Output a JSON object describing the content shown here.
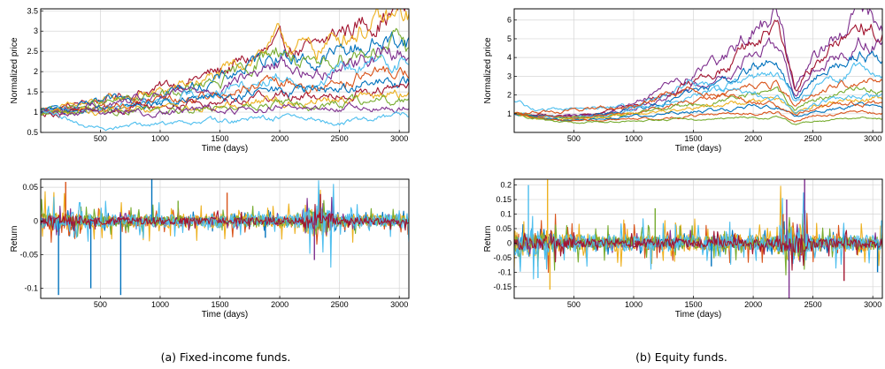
{
  "captions": {
    "left": "(a)  Fixed-income funds.",
    "right": "(b)  Equity funds."
  },
  "palette": [
    "#0072bd",
    "#d95319",
    "#edb120",
    "#7e2f8e",
    "#77ac30",
    "#4dbeee",
    "#a2142f"
  ],
  "chart_data": [
    {
      "id": "fi-price",
      "type": "line",
      "xlabel": "Time (days)",
      "ylabel": "Normalized price",
      "xlim": [
        1,
        3080
      ],
      "ylim": [
        0.5,
        3.55
      ],
      "xticks": [
        500,
        1000,
        1500,
        2000,
        2500,
        3000
      ],
      "yticks": [
        0.5,
        1,
        1.5,
        2,
        2.5,
        3,
        3.5
      ],
      "ytick_labels": [
        "0.5",
        "1",
        "1.5",
        "2",
        "2.5",
        "3",
        "3.5"
      ],
      "grid": true,
      "x": [
        1,
        500,
        1000,
        1500,
        2000,
        2300,
        2500,
        3000,
        3080
      ],
      "series": [
        {
          "values": [
            1.0,
            1.3,
            1.6,
            2.0,
            2.6,
            2.5,
            3.0,
            3.5,
            3.55
          ],
          "color": "#a2142f"
        },
        {
          "values": [
            1.0,
            1.25,
            1.5,
            1.9,
            2.8,
            2.5,
            2.9,
            3.3,
            3.35
          ],
          "color": "#edb120"
        },
        {
          "values": [
            1.0,
            1.2,
            1.45,
            1.8,
            2.5,
            2.2,
            2.5,
            2.8,
            2.8
          ],
          "color": "#0072bd"
        },
        {
          "values": [
            1.0,
            1.2,
            1.4,
            1.7,
            2.6,
            2.0,
            2.4,
            2.7,
            2.6
          ],
          "color": "#77ac30"
        },
        {
          "values": [
            1.0,
            1.15,
            1.35,
            1.65,
            2.2,
            1.9,
            2.2,
            2.5,
            2.5
          ],
          "color": "#7e2f8e"
        },
        {
          "values": [
            1.0,
            1.12,
            1.3,
            1.55,
            1.9,
            1.75,
            2.0,
            2.3,
            2.3
          ],
          "color": "#4dbeee"
        },
        {
          "values": [
            1.0,
            1.1,
            1.25,
            1.45,
            1.7,
            1.6,
            1.8,
            2.0,
            2.0
          ],
          "color": "#d95319"
        },
        {
          "values": [
            1.0,
            1.08,
            1.2,
            1.35,
            1.55,
            1.5,
            1.6,
            1.75,
            1.75
          ],
          "color": "#0072bd"
        },
        {
          "values": [
            1.0,
            1.06,
            1.15,
            1.28,
            1.45,
            1.4,
            1.5,
            1.6,
            1.6
          ],
          "color": "#a2142f"
        },
        {
          "values": [
            1.0,
            1.04,
            1.1,
            1.2,
            1.3,
            1.28,
            1.35,
            1.45,
            1.45
          ],
          "color": "#edb120"
        },
        {
          "values": [
            1.0,
            1.02,
            1.06,
            1.12,
            1.2,
            1.18,
            1.22,
            1.3,
            1.3
          ],
          "color": "#77ac30"
        },
        {
          "values": [
            1.0,
            0.98,
            1.0,
            1.05,
            1.1,
            1.05,
            1.08,
            1.12,
            1.12
          ],
          "color": "#7e2f8e"
        },
        {
          "values": [
            1.0,
            0.6,
            0.72,
            0.78,
            0.85,
            0.8,
            0.7,
            0.95,
            0.9
          ],
          "color": "#4dbeee"
        }
      ]
    },
    {
      "id": "fi-return",
      "type": "line",
      "xlabel": "Time (days)",
      "ylabel": "Return",
      "xlim": [
        1,
        3080
      ],
      "ylim": [
        -0.115,
        0.062
      ],
      "xticks": [
        500,
        1000,
        1500,
        2000,
        2500,
        3000
      ],
      "yticks": [
        -0.1,
        -0.05,
        0,
        0.05
      ],
      "ytick_labels": [
        "-0.1",
        "-0.05",
        "0",
        "0.05"
      ],
      "grid": true,
      "spikes": [
        {
          "x": 150,
          "y": -0.11,
          "color": "#0072bd"
        },
        {
          "x": 420,
          "y": -0.1,
          "color": "#0072bd"
        },
        {
          "x": 670,
          "y": -0.11,
          "color": "#0072bd"
        },
        {
          "x": 930,
          "y": 0.062,
          "color": "#0072bd"
        },
        {
          "x": 210,
          "y": 0.058,
          "color": "#d95319"
        },
        {
          "x": 1560,
          "y": 0.042,
          "color": "#d95319"
        },
        {
          "x": 2290,
          "y": -0.058,
          "color": "#7e2f8e"
        },
        {
          "x": 2340,
          "y": 0.04,
          "color": "#a2142f"
        },
        {
          "x": 1880,
          "y": -0.025,
          "color": "#0072bd"
        },
        {
          "x": 1150,
          "y": 0.03,
          "color": "#77ac30"
        }
      ],
      "noise_amplitude": 0.018
    },
    {
      "id": "eq-price",
      "type": "line",
      "xlabel": "Time (days)",
      "ylabel": "Normalized price",
      "xlim": [
        1,
        3080
      ],
      "ylim": [
        0,
        6.6
      ],
      "xticks": [
        500,
        1000,
        1500,
        2000,
        2500,
        3000
      ],
      "yticks": [
        1,
        2,
        3,
        4,
        5,
        6
      ],
      "ytick_labels": [
        "1",
        "2",
        "3",
        "4",
        "5",
        "6"
      ],
      "grid": true,
      "x": [
        1,
        250,
        500,
        750,
        1000,
        1250,
        1500,
        1750,
        2000,
        2200,
        2350,
        2500,
        2750,
        2900,
        3080
      ],
      "series": [
        {
          "values": [
            1.0,
            0.9,
            0.9,
            1.0,
            1.5,
            2.3,
            3.0,
            3.9,
            5.6,
            6.4,
            2.3,
            4.0,
            5.5,
            6.5,
            5.8
          ],
          "color": "#7e2f8e"
        },
        {
          "values": [
            1.0,
            0.9,
            0.85,
            1.0,
            1.4,
            2.0,
            2.7,
            3.4,
            4.8,
            5.6,
            2.2,
            3.6,
            4.9,
            5.8,
            5.2
          ],
          "color": "#a2142f"
        },
        {
          "values": [
            1.0,
            0.85,
            0.85,
            0.95,
            1.3,
            1.8,
            2.4,
            3.0,
            4.2,
            4.7,
            2.0,
            3.2,
            4.3,
            5.0,
            4.6
          ],
          "color": "#7e2f8e"
        },
        {
          "values": [
            1.0,
            0.85,
            0.8,
            0.95,
            1.25,
            1.6,
            2.1,
            2.6,
            3.5,
            3.9,
            1.8,
            2.8,
            3.7,
            4.2,
            3.9
          ],
          "color": "#0072bd"
        },
        {
          "values": [
            1.0,
            0.8,
            0.8,
            0.9,
            1.2,
            1.5,
            1.9,
            2.3,
            3.0,
            3.3,
            1.6,
            2.4,
            3.1,
            3.5,
            3.3
          ],
          "color": "#4dbeee"
        },
        {
          "values": [
            1.0,
            0.8,
            0.75,
            0.9,
            1.1,
            1.35,
            1.7,
            2.0,
            2.5,
            2.7,
            1.4,
            2.0,
            2.6,
            2.9,
            2.7
          ],
          "color": "#d95319"
        },
        {
          "values": [
            1.0,
            0.75,
            0.75,
            0.85,
            1.0,
            1.2,
            1.5,
            1.7,
            2.1,
            2.2,
            1.2,
            1.7,
            2.1,
            2.3,
            2.2
          ],
          "color": "#77ac30"
        },
        {
          "values": [
            1.0,
            0.75,
            0.7,
            0.8,
            0.95,
            1.1,
            1.3,
            1.45,
            1.7,
            1.8,
            1.0,
            1.4,
            1.7,
            1.85,
            1.8
          ],
          "color": "#edb120"
        },
        {
          "values": [
            1.0,
            0.7,
            0.65,
            0.75,
            0.85,
            0.95,
            1.1,
            1.2,
            1.35,
            1.4,
            0.8,
            1.1,
            1.3,
            1.4,
            1.35
          ],
          "color": "#0072bd"
        },
        {
          "values": [
            1.0,
            0.7,
            0.6,
            0.65,
            0.7,
            0.8,
            0.9,
            0.95,
            1.05,
            1.1,
            0.6,
            0.85,
            1.0,
            1.05,
            1.0
          ],
          "color": "#d95319"
        },
        {
          "values": [
            1.0,
            0.65,
            0.55,
            0.55,
            0.6,
            0.65,
            0.7,
            0.75,
            0.8,
            0.8,
            0.45,
            0.6,
            0.7,
            0.75,
            0.7
          ],
          "color": "#77ac30"
        },
        {
          "values": [
            1.6,
            1.2,
            1.3,
            1.3,
            1.4,
            2.0,
            2.7,
            2.2,
            2.0,
            1.8,
            1.0,
            1.5,
            1.8,
            2.0,
            1.9
          ],
          "color": "#4dbeee"
        },
        {
          "values": [
            1.0,
            1.1,
            1.2,
            1.3,
            1.35,
            1.9,
            2.5,
            2.1,
            1.6,
            1.5,
            0.9,
            1.3,
            1.5,
            1.6,
            1.5
          ],
          "color": "#d95319"
        }
      ]
    },
    {
      "id": "eq-return",
      "type": "line",
      "xlabel": "Time (days)",
      "ylabel": "Return",
      "xlim": [
        1,
        3080
      ],
      "ylim": [
        -0.19,
        0.22
      ],
      "xticks": [
        500,
        1000,
        1500,
        2000,
        2500,
        3000
      ],
      "yticks": [
        -0.15,
        -0.1,
        -0.05,
        0,
        0.05,
        0.1,
        0.15,
        0.2
      ],
      "ytick_labels": [
        "-0.15",
        "-0.1",
        "-0.05",
        "0",
        "0.05",
        "0.1",
        "0.15",
        "0.2"
      ],
      "grid": true,
      "spikes": [
        {
          "x": 120,
          "y": 0.2,
          "color": "#4dbeee"
        },
        {
          "x": 280,
          "y": 0.22,
          "color": "#edb120"
        },
        {
          "x": 300,
          "y": -0.16,
          "color": "#edb120"
        },
        {
          "x": 200,
          "y": -0.12,
          "color": "#4dbeee"
        },
        {
          "x": 1180,
          "y": 0.12,
          "color": "#77ac30"
        },
        {
          "x": 2280,
          "y": 0.15,
          "color": "#7e2f8e"
        },
        {
          "x": 2300,
          "y": -0.19,
          "color": "#7e2f8e"
        },
        {
          "x": 2430,
          "y": 0.22,
          "color": "#7e2f8e"
        },
        {
          "x": 2760,
          "y": -0.13,
          "color": "#a2142f"
        },
        {
          "x": 3040,
          "y": -0.1,
          "color": "#0072bd"
        },
        {
          "x": 2250,
          "y": 0.1,
          "color": "#d95319"
        },
        {
          "x": 1650,
          "y": -0.08,
          "color": "#0072bd"
        }
      ],
      "noise_amplitude": 0.05
    }
  ]
}
